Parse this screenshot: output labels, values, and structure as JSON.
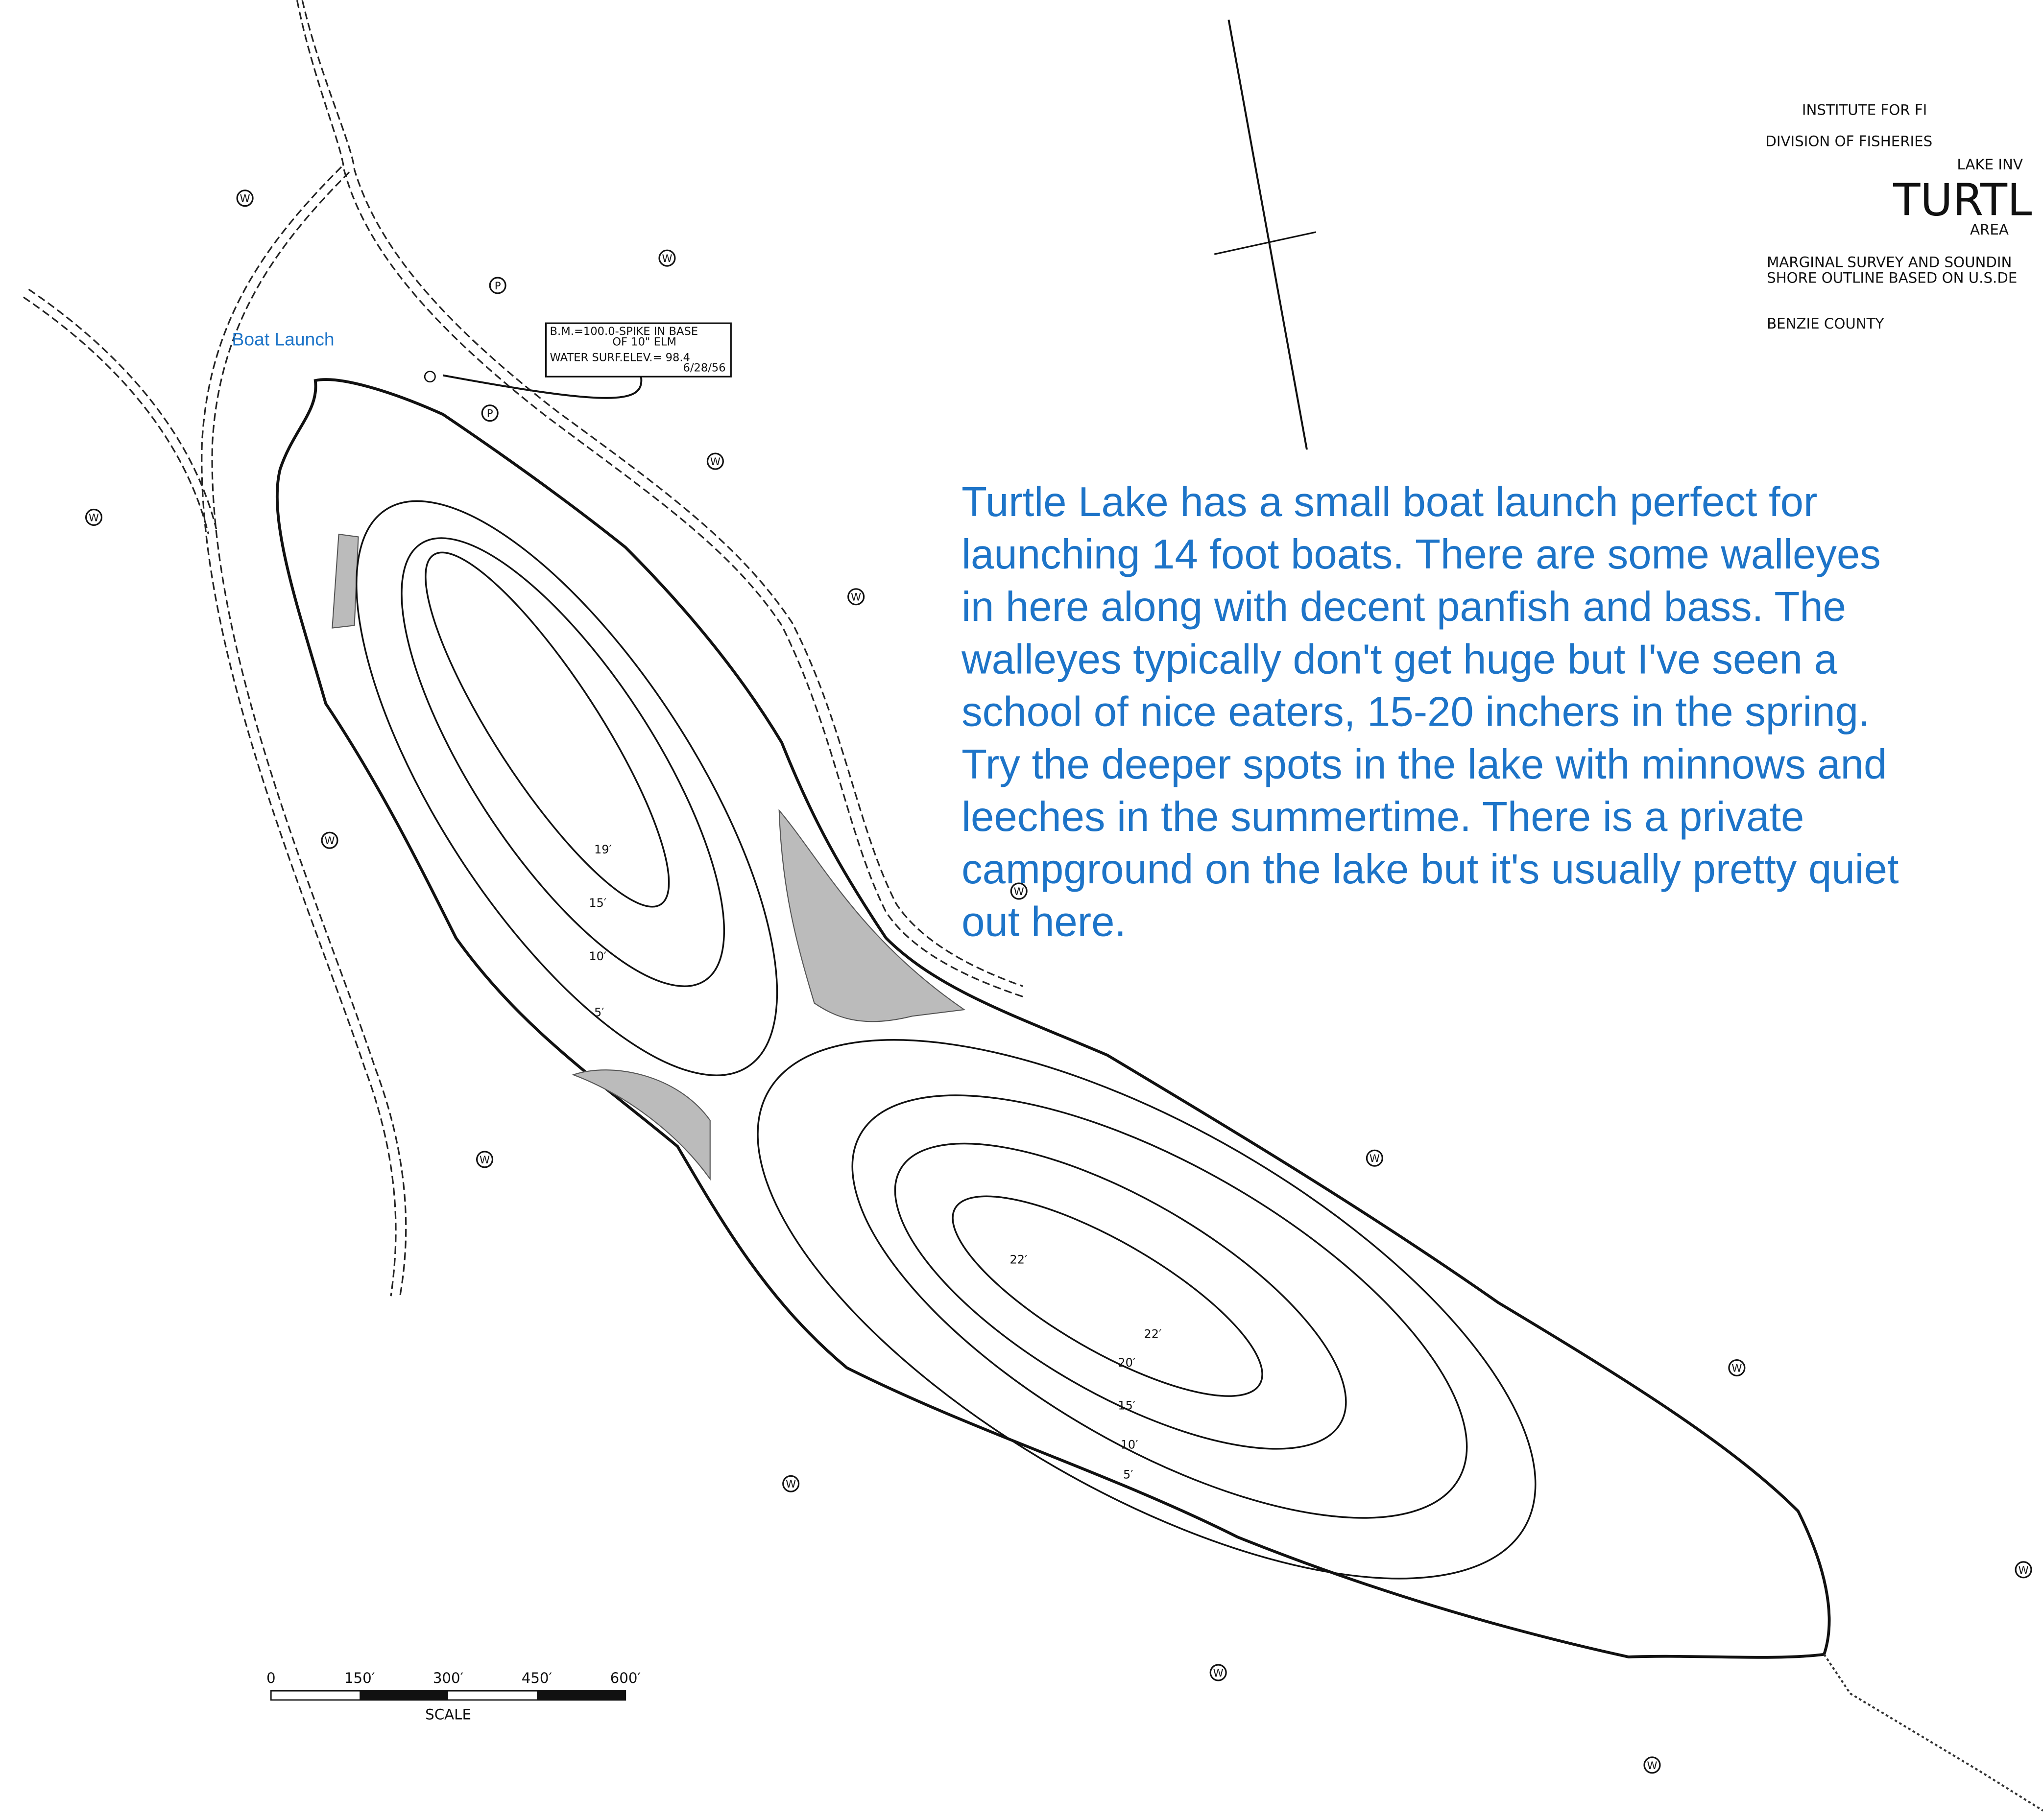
{
  "title_block": {
    "institute": "INSTITUTE FOR FI",
    "division": "DIVISION OF FISHERIES",
    "survey": "LAKE INV",
    "lake": "TURTL",
    "area": "AREA",
    "notes": [
      "MARGINAL SURVEY AND SOUNDIN",
      "SHORE OUTLINE BASED ON U.S.DE"
    ],
    "county": "BENZIE COUNTY"
  },
  "benchmark": [
    "B.M.=100.0-SPIKE IN BASE",
    "OF 10\" ELM",
    "WATER SURF.ELEV.= 98.4",
    "6/28/56"
  ],
  "boat_launch": "Boat Launch",
  "description": [
    "Turtle Lake has a small boat launch perfect for",
    "launching 14 foot boats.  There are some walleyes",
    "in here along with decent panfish and bass.  The",
    "walleyes typically don't get huge but I've seen a",
    "school of nice eaters, 15-20 inchers in the spring.",
    "Try the deeper spots in the lake with minnows and",
    "leeches in the summertime.  There is a private",
    "campground on the lake but it's usually pretty quiet",
    "out here."
  ],
  "depth_labels": [
    "19′",
    "15′",
    "10′",
    "5′",
    "22′",
    "22′",
    "20′",
    "15′",
    "10′",
    "5′"
  ],
  "map_symbols": [
    "W",
    "P"
  ],
  "scale": {
    "ticks": [
      "0",
      "150′",
      "300′",
      "450′",
      "600′"
    ],
    "label": "SCALE"
  }
}
